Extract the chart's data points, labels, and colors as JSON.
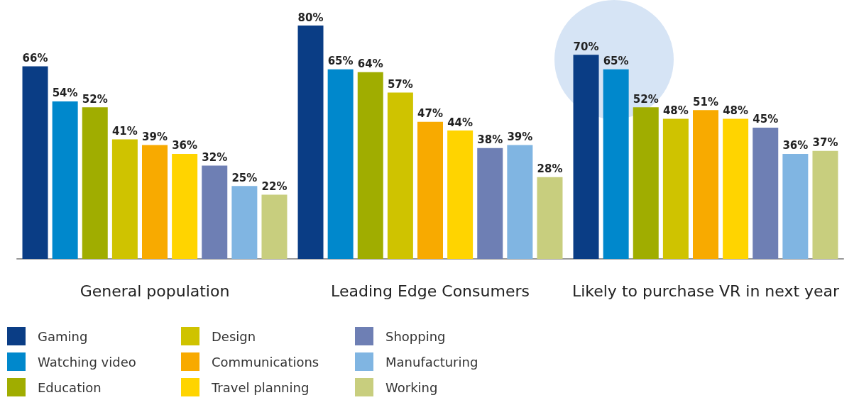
{
  "chart_data": {
    "type": "bar",
    "categories": [
      "General population",
      "Leading Edge Consumers",
      "Likely to purchase VR in next year"
    ],
    "legend": "bottom left",
    "series": [
      {
        "name": "Gaming",
        "color": "#0a3d85",
        "values": [
          66,
          80,
          70
        ],
        "value_labels": [
          "66%",
          "80%",
          "70%"
        ]
      },
      {
        "name": "Watching video",
        "color": "#0088cc",
        "values": [
          54,
          65,
          65
        ],
        "value_labels": [
          "54%",
          "65%",
          "65%"
        ]
      },
      {
        "name": "Education",
        "color": "#a0ad00",
        "values": [
          52,
          64,
          52
        ],
        "value_labels": [
          "52%",
          "64%",
          "52%"
        ]
      },
      {
        "name": "Design",
        "color": "#cfc300",
        "values": [
          41,
          57,
          48
        ],
        "value_labels": [
          "41%",
          "57%",
          "48%"
        ]
      },
      {
        "name": "Communications",
        "color": "#f8aa00",
        "values": [
          39,
          47,
          51
        ],
        "value_labels": [
          "39%",
          "47%",
          "51%"
        ]
      },
      {
        "name": "Travel planning",
        "color": "#ffd400",
        "values": [
          36,
          44,
          48
        ],
        "value_labels": [
          "36%",
          "44%",
          "48%"
        ]
      },
      {
        "name": "Shopping",
        "color": "#6e7fb4",
        "values": [
          32,
          38,
          45
        ],
        "value_labels": [
          "32%",
          "38%",
          "45%"
        ]
      },
      {
        "name": "Manufacturing",
        "color": "#80b5e2",
        "values": [
          25,
          39,
          36
        ],
        "value_labels": [
          "25%",
          "39%",
          "36%"
        ]
      },
      {
        "name": "Working",
        "color": "#c8ce7e",
        "values": [
          22,
          28,
          37
        ],
        "value_labels": [
          "22%",
          "28%",
          "37%"
        ]
      }
    ]
  }
}
